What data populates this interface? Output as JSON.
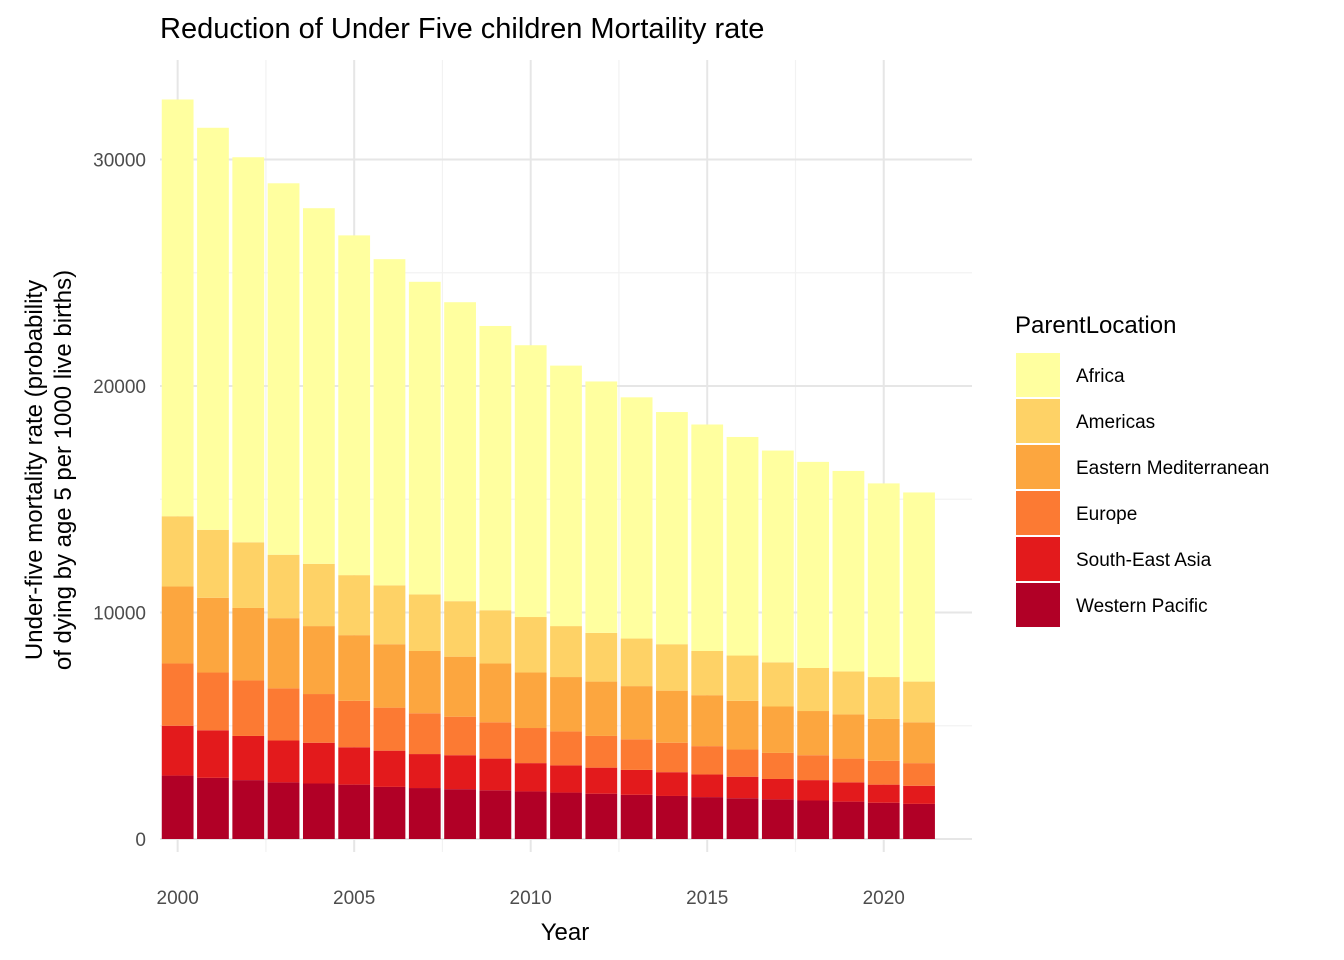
{
  "chart_data": {
    "type": "bar",
    "stacked": true,
    "title": "Reduction of Under Five children Mortaility rate",
    "xlabel": "Year",
    "ylabel_lines": [
      "Under-five mortality rate (probability",
      "of dying by age 5 per 1000 live births)"
    ],
    "x_ticks": [
      2000,
      2005,
      2010,
      2015,
      2020
    ],
    "y_ticks": [
      0,
      10000,
      20000,
      30000
    ],
    "xlim": [
      1999.5,
      2022.5
    ],
    "ylim": [
      0,
      33000
    ],
    "grid": true,
    "legend_title": "ParentLocation",
    "legend_position": "right",
    "categories": [
      2000,
      2001,
      2002,
      2003,
      2004,
      2005,
      2006,
      2007,
      2008,
      2009,
      2010,
      2011,
      2012,
      2013,
      2014,
      2015,
      2016,
      2017,
      2018,
      2019,
      2020,
      2021
    ],
    "series": [
      {
        "name": "Western Pacific",
        "color": "#b10026",
        "values": [
          2800,
          2700,
          2600,
          2500,
          2450,
          2400,
          2300,
          2250,
          2200,
          2150,
          2100,
          2050,
          2000,
          1950,
          1900,
          1850,
          1800,
          1750,
          1700,
          1650,
          1600,
          1550
        ]
      },
      {
        "name": "South-East Asia",
        "color": "#e31a1c",
        "values": [
          2200,
          2100,
          1950,
          1850,
          1800,
          1650,
          1600,
          1500,
          1500,
          1400,
          1250,
          1200,
          1150,
          1100,
          1050,
          1000,
          950,
          900,
          900,
          850,
          800,
          800
        ]
      },
      {
        "name": "Europe",
        "color": "#fc7a33",
        "values": [
          2750,
          2550,
          2450,
          2300,
          2150,
          2050,
          1900,
          1800,
          1700,
          1600,
          1550,
          1500,
          1400,
          1350,
          1300,
          1250,
          1200,
          1150,
          1100,
          1050,
          1050,
          1000
        ]
      },
      {
        "name": "Eastern Mediterranean",
        "color": "#fca63f",
        "values": [
          3400,
          3300,
          3200,
          3100,
          3000,
          2900,
          2800,
          2750,
          2650,
          2600,
          2450,
          2400,
          2400,
          2350,
          2300,
          2250,
          2150,
          2050,
          1950,
          1950,
          1850,
          1800
        ]
      },
      {
        "name": "Americas",
        "color": "#fed266",
        "values": [
          3100,
          3000,
          2900,
          2800,
          2750,
          2650,
          2600,
          2500,
          2450,
          2350,
          2450,
          2250,
          2150,
          2100,
          2050,
          1950,
          2000,
          1950,
          1900,
          1900,
          1850,
          1800
        ]
      },
      {
        "name": "Africa",
        "color": "#ffff9f",
        "values": [
          18400,
          17750,
          17000,
          16400,
          15700,
          15000,
          14400,
          13800,
          13200,
          12550,
          12000,
          11500,
          11100,
          10650,
          10250,
          10000,
          9650,
          9350,
          9100,
          8850,
          8550,
          8350
        ]
      }
    ],
    "legend_order": [
      "Africa",
      "Americas",
      "Eastern Mediterranean",
      "Europe",
      "South-East Asia",
      "Western Pacific"
    ]
  }
}
